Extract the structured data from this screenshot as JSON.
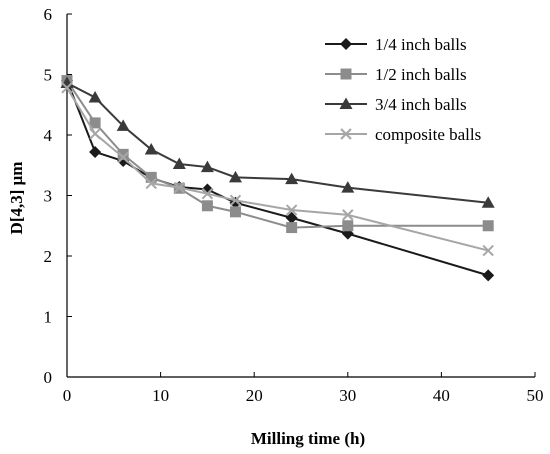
{
  "chart_data": {
    "type": "line",
    "xlabel": "Milling time (h)",
    "ylabel": "D[4,3] μm",
    "xlim": [
      0,
      50
    ],
    "ylim": [
      0,
      6
    ],
    "xticks": [
      0,
      10,
      20,
      30,
      40,
      50
    ],
    "yticks": [
      0,
      1,
      2,
      3,
      4,
      5,
      6
    ],
    "grid": false,
    "legend_position": "top-right",
    "series": [
      {
        "name": "1/4 inch balls",
        "marker": "diamond",
        "color": "#1a1a1a",
        "points": [
          [
            0,
            4.9
          ],
          [
            3,
            3.72
          ],
          [
            6,
            3.57
          ],
          [
            9,
            3.29
          ],
          [
            12,
            3.14
          ],
          [
            15,
            3.1
          ],
          [
            18,
            2.88
          ],
          [
            24,
            2.63
          ],
          [
            30,
            2.37
          ],
          [
            45,
            1.68
          ]
        ]
      },
      {
        "name": "1/2 inch balls",
        "marker": "square",
        "color": "#8c8c8c",
        "points": [
          [
            0,
            4.9
          ],
          [
            3,
            4.2
          ],
          [
            6,
            3.68
          ],
          [
            9,
            3.3
          ],
          [
            12,
            3.12
          ],
          [
            15,
            2.83
          ],
          [
            18,
            2.73
          ],
          [
            24,
            2.47
          ],
          [
            30,
            2.5
          ],
          [
            45,
            2.5
          ]
        ]
      },
      {
        "name": "3/4 inch balls",
        "marker": "triangle",
        "color": "#3a3a3a",
        "points": [
          [
            0,
            4.86
          ],
          [
            3,
            4.62
          ],
          [
            6,
            4.15
          ],
          [
            9,
            3.76
          ],
          [
            12,
            3.52
          ],
          [
            15,
            3.47
          ],
          [
            18,
            3.3
          ],
          [
            24,
            3.27
          ],
          [
            30,
            3.13
          ],
          [
            45,
            2.88
          ]
        ]
      },
      {
        "name": "composite balls",
        "marker": "x",
        "color": "#a6a6a6",
        "points": [
          [
            0,
            4.78
          ],
          [
            3,
            4.02
          ],
          [
            6,
            3.63
          ],
          [
            9,
            3.2
          ],
          [
            12,
            3.13
          ],
          [
            15,
            3.03
          ],
          [
            18,
            2.92
          ],
          [
            24,
            2.76
          ],
          [
            30,
            2.68
          ],
          [
            45,
            2.09
          ]
        ]
      }
    ]
  }
}
